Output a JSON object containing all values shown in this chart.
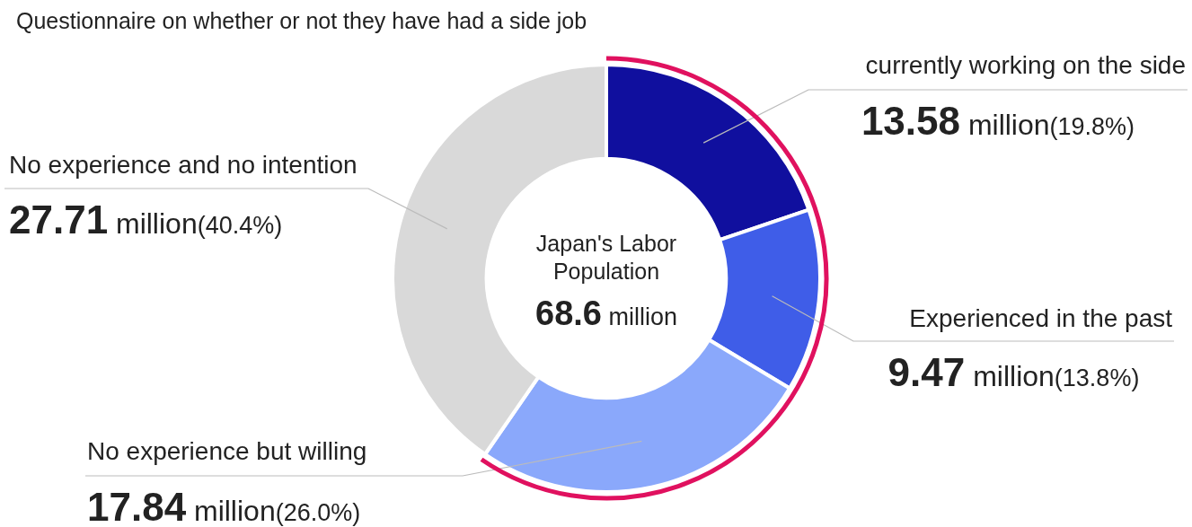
{
  "chart_data": {
    "type": "donut",
    "title": "Questionnaire on whether or not they have had a side job",
    "categories": [
      "currently working on the side",
      "Experienced in the past",
      "No experience but willing",
      "No experience and no intention"
    ],
    "values": [
      19.8,
      13.8,
      26.0,
      40.4
    ],
    "colors": [
      "#100f9e",
      "#3f5de8",
      "#8aa8fb",
      "#d9d9d9"
    ],
    "value_labels": [
      "13.58 million(19.8%)",
      "9.47 million(13.8%)",
      "17.84 million(26.0%)",
      "27.71 million(40.4%)"
    ],
    "annotations": [
      "Japan's Labor Population",
      "68.6 million"
    ]
  }
}
